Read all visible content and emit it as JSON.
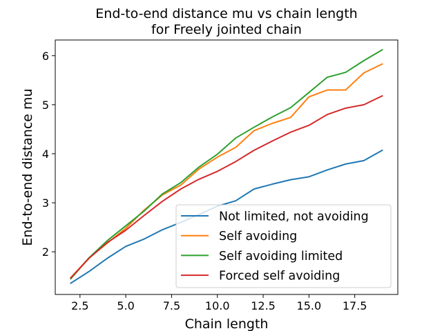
{
  "chart_data": {
    "type": "line",
    "title_line1": "End-to-end distance mu vs chain length",
    "title_line2": "for Freely jointed chain",
    "xlabel": "Chain length",
    "ylabel": "End-to-end distance mu",
    "xlim": [
      1.15,
      19.85
    ],
    "ylim": [
      1.13,
      6.32
    ],
    "xticks": [
      2.5,
      5.0,
      7.5,
      10.0,
      12.5,
      15.0,
      17.5
    ],
    "xtick_labels": [
      "2.5",
      "5.0",
      "7.5",
      "10.0",
      "12.5",
      "15.0",
      "17.5"
    ],
    "yticks": [
      2,
      3,
      4,
      5,
      6
    ],
    "ytick_labels": [
      "2",
      "3",
      "4",
      "5",
      "6"
    ],
    "grid": false,
    "legend_position": "lower-right",
    "x": [
      2,
      3,
      4,
      5,
      6,
      7,
      8,
      9,
      10,
      11,
      12,
      13,
      14,
      15,
      16,
      17,
      18,
      19
    ],
    "series": [
      {
        "name": "Not limited, not avoiding",
        "color": "#1f77b4",
        "values": [
          1.36,
          1.6,
          1.87,
          2.11,
          2.26,
          2.45,
          2.6,
          2.76,
          2.93,
          3.04,
          3.28,
          3.38,
          3.47,
          3.53,
          3.67,
          3.79,
          3.86,
          4.07
        ]
      },
      {
        "name": "Self avoiding",
        "color": "#ff7f0e",
        "values": [
          1.47,
          1.88,
          2.18,
          2.48,
          2.85,
          3.16,
          3.36,
          3.69,
          3.93,
          4.13,
          4.47,
          4.62,
          4.74,
          5.16,
          5.3,
          5.3,
          5.65,
          5.83
        ]
      },
      {
        "name": "Self avoiding limited",
        "color": "#2ca02c",
        "values": [
          1.45,
          1.88,
          2.23,
          2.53,
          2.83,
          3.18,
          3.41,
          3.73,
          3.99,
          4.32,
          4.54,
          4.75,
          4.94,
          5.25,
          5.56,
          5.66,
          5.9,
          6.12
        ]
      },
      {
        "name": "Forced self avoiding",
        "color": "#d62728",
        "values": [
          1.47,
          1.87,
          2.19,
          2.44,
          2.74,
          3.03,
          3.28,
          3.48,
          3.64,
          3.84,
          4.07,
          4.26,
          4.44,
          4.58,
          4.8,
          4.93,
          5.0,
          5.18
        ]
      }
    ]
  }
}
